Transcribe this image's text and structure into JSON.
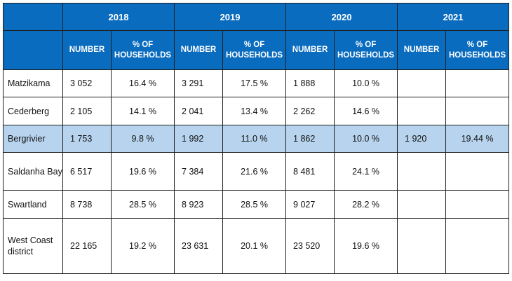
{
  "table": {
    "years": [
      "2018",
      "2019",
      "2020",
      "2021"
    ],
    "col_number": "NUMBER",
    "col_pct_line1": "% OF",
    "col_pct_line2": "HOUSEHOLDS",
    "highlight_color": "#b7d3ed",
    "header_color": "#0a6cbf",
    "rows": [
      {
        "name": "Matzikama",
        "cells": [
          "3 052",
          "16.4 %",
          "3 291",
          "17.5 %",
          "1 888",
          "10.0 %",
          "",
          ""
        ]
      },
      {
        "name": "Cederberg",
        "cells": [
          "2 105",
          "14.1 %",
          "2 041",
          "13.4 %",
          "2 262",
          "14.6 %",
          "",
          ""
        ]
      },
      {
        "name": "Bergrivier",
        "cells": [
          "1 753",
          "9.8 %",
          "1 992",
          "11.0 %",
          "1 862",
          "10.0 %",
          "1 920",
          "19.44 %"
        ]
      },
      {
        "name": "Saldanha Bay",
        "cells": [
          "6 517",
          "19.6 %",
          "7 384",
          "21.6 %",
          "8 481",
          "24.1 %",
          "",
          ""
        ]
      },
      {
        "name": "Swartland",
        "cells": [
          "8 738",
          "28.5 %",
          "8 923",
          "28.5 %",
          "9 027",
          "28.2 %",
          "",
          ""
        ]
      },
      {
        "name": "West Coast district",
        "cells": [
          "22 165",
          "19.2 %",
          "23 631",
          "20.1 %",
          "23 520",
          "19.6 %",
          "",
          ""
        ]
      }
    ]
  }
}
